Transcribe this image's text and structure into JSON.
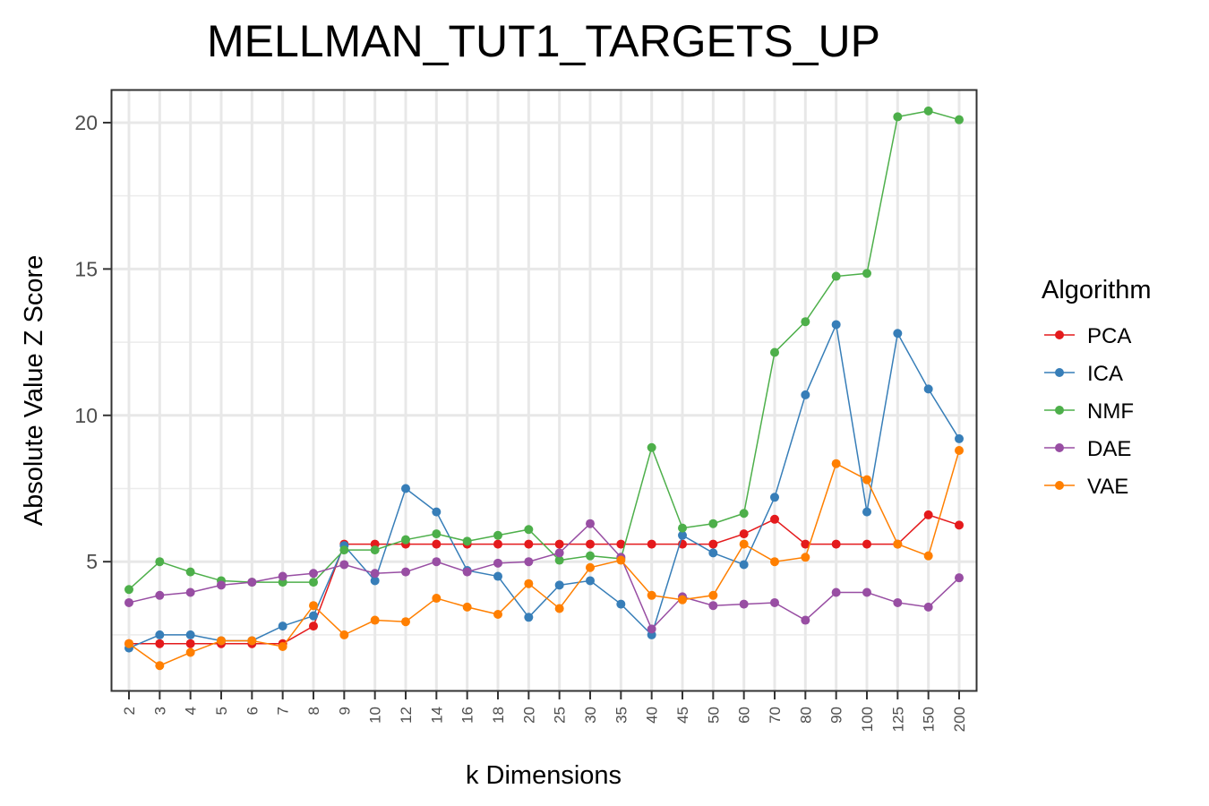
{
  "chart_data": {
    "type": "line",
    "title": "MELLMAN_TUT1_TARGETS_UP",
    "xlabel": "k Dimensions",
    "ylabel": "Absolute Value Z Score",
    "categories": [
      "2",
      "3",
      "4",
      "5",
      "6",
      "7",
      "8",
      "9",
      "10",
      "12",
      "14",
      "16",
      "18",
      "20",
      "25",
      "30",
      "35",
      "40",
      "45",
      "50",
      "60",
      "70",
      "80",
      "90",
      "100",
      "125",
      "150",
      "200"
    ],
    "yticks": [
      5,
      10,
      15,
      20
    ],
    "ylim": [
      0.6,
      21.1
    ],
    "grid": true,
    "legend": {
      "title": "Algorithm",
      "position": "right"
    },
    "series": [
      {
        "name": "PCA",
        "color": "#E41A1C",
        "values": [
          2.2,
          2.2,
          2.2,
          2.2,
          2.2,
          2.2,
          2.8,
          5.6,
          5.6,
          5.6,
          5.6,
          5.6,
          5.6,
          5.6,
          5.6,
          5.6,
          5.6,
          5.6,
          5.6,
          5.6,
          5.95,
          6.45,
          5.6,
          5.6,
          5.6,
          5.6,
          6.6,
          6.25
        ]
      },
      {
        "name": "ICA",
        "color": "#377EB8",
        "values": [
          2.05,
          2.5,
          2.5,
          2.3,
          2.3,
          2.8,
          3.15,
          5.55,
          4.35,
          7.5,
          6.7,
          4.7,
          4.5,
          3.1,
          4.2,
          4.35,
          3.55,
          2.5,
          5.9,
          5.3,
          4.9,
          7.2,
          10.7,
          13.1,
          6.7,
          12.8,
          10.9,
          9.2
        ]
      },
      {
        "name": "NMF",
        "color": "#4DAF4A",
        "values": [
          4.05,
          5.0,
          4.65,
          4.35,
          4.3,
          4.3,
          4.3,
          5.4,
          5.4,
          5.75,
          5.95,
          5.7,
          5.9,
          6.1,
          5.05,
          5.2,
          5.1,
          8.9,
          6.15,
          6.3,
          6.65,
          12.15,
          13.2,
          14.75,
          14.85,
          20.2,
          20.4,
          20.1
        ]
      },
      {
        "name": "DAE",
        "color": "#984EA3",
        "values": [
          3.6,
          3.85,
          3.95,
          4.2,
          4.3,
          4.5,
          4.6,
          4.9,
          4.6,
          4.65,
          5.0,
          4.65,
          4.95,
          5.0,
          5.3,
          6.3,
          5.15,
          2.7,
          3.8,
          3.5,
          3.55,
          3.6,
          3.0,
          3.95,
          3.95,
          3.6,
          3.45,
          4.45
        ]
      },
      {
        "name": "VAE",
        "color": "#FF7F00",
        "values": [
          2.2,
          1.45,
          1.9,
          2.3,
          2.3,
          2.1,
          3.5,
          2.5,
          3.0,
          2.95,
          3.75,
          3.45,
          3.2,
          4.25,
          3.4,
          4.8,
          5.05,
          3.85,
          3.7,
          3.85,
          5.6,
          5.0,
          5.15,
          8.35,
          7.8,
          5.6,
          5.2,
          8.8
        ]
      }
    ]
  }
}
